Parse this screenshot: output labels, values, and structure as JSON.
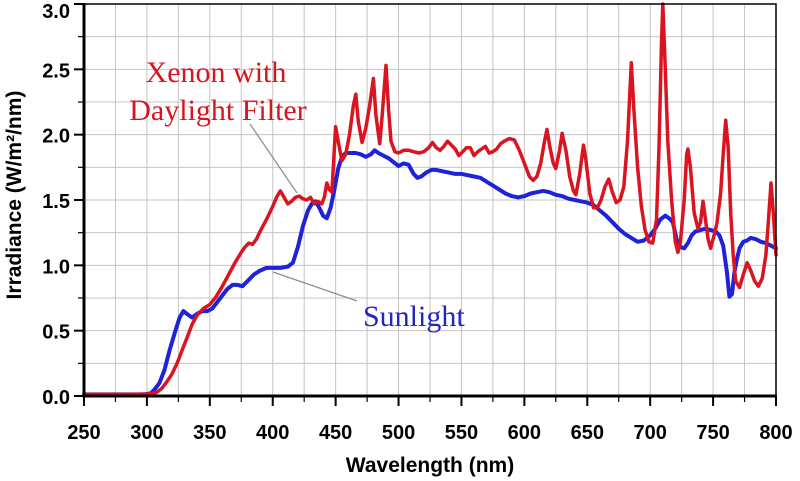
{
  "page": {
    "background": "#ffffff"
  },
  "chart_data": {
    "type": "line",
    "title": "",
    "xlabel": "Wavelength (nm)",
    "ylabel": "Irradiance (W/m²/nm)",
    "xlim": [
      250,
      800
    ],
    "ylim": [
      0,
      3.0
    ],
    "x_minor_step": 25,
    "y_minor_step": 0.25,
    "grid": "on",
    "grid_color": "#c4c4c4",
    "legend": "none",
    "x_ticks": [
      {
        "v": 250,
        "label": "250"
      },
      {
        "v": 300,
        "label": "300"
      },
      {
        "v": 350,
        "label": "350"
      },
      {
        "v": 400,
        "label": "400"
      },
      {
        "v": 450,
        "label": "450"
      },
      {
        "v": 500,
        "label": "500"
      },
      {
        "v": 550,
        "label": "550"
      },
      {
        "v": 600,
        "label": "600"
      },
      {
        "v": 650,
        "label": "650"
      },
      {
        "v": 700,
        "label": "700"
      },
      {
        "v": 750,
        "label": "750"
      },
      {
        "v": 800,
        "label": "800"
      }
    ],
    "y_ticks": [
      {
        "v": 0,
        "label": "0.0"
      },
      {
        "v": 0.5,
        "label": "0.5"
      },
      {
        "v": 1,
        "label": "1.0"
      },
      {
        "v": 1.5,
        "label": "1.5"
      },
      {
        "v": 2,
        "label": "2.0"
      },
      {
        "v": 2.5,
        "label": "2.5"
      },
      {
        "v": 3,
        "label": "3.0"
      }
    ],
    "series": [
      {
        "name": "Xenon with Daylight Filter",
        "id": "xenon-filter-curve",
        "color": "#da1420",
        "stroke_width": 3.5,
        "z": 2,
        "points": [
          [
            250,
            0.012
          ],
          [
            290,
            0.012
          ],
          [
            300,
            0.015
          ],
          [
            305,
            0.02
          ],
          [
            308,
            0.03
          ],
          [
            312,
            0.06
          ],
          [
            316,
            0.11
          ],
          [
            320,
            0.17
          ],
          [
            324,
            0.25
          ],
          [
            328,
            0.35
          ],
          [
            332,
            0.45
          ],
          [
            336,
            0.55
          ],
          [
            340,
            0.62
          ],
          [
            345,
            0.67
          ],
          [
            350,
            0.7
          ],
          [
            355,
            0.76
          ],
          [
            360,
            0.84
          ],
          [
            365,
            0.93
          ],
          [
            370,
            1.02
          ],
          [
            375,
            1.1
          ],
          [
            378,
            1.14
          ],
          [
            381,
            1.17
          ],
          [
            384,
            1.16
          ],
          [
            387,
            1.2
          ],
          [
            390,
            1.26
          ],
          [
            395,
            1.35
          ],
          [
            400,
            1.45
          ],
          [
            403,
            1.52
          ],
          [
            406,
            1.57
          ],
          [
            409,
            1.52
          ],
          [
            412,
            1.47
          ],
          [
            415,
            1.49
          ],
          [
            418,
            1.52
          ],
          [
            421,
            1.53
          ],
          [
            424,
            1.51
          ],
          [
            427,
            1.5
          ],
          [
            430,
            1.52
          ],
          [
            433,
            1.47
          ],
          [
            436,
            1.49
          ],
          [
            439,
            1.47
          ],
          [
            441,
            1.52
          ],
          [
            443,
            1.63
          ],
          [
            445,
            1.58
          ],
          [
            447,
            1.56
          ],
          [
            450,
            2.06
          ],
          [
            452,
            1.95
          ],
          [
            455,
            1.8
          ],
          [
            458,
            1.85
          ],
          [
            461,
            2.0
          ],
          [
            464,
            2.22
          ],
          [
            466,
            2.31
          ],
          [
            468,
            2.1
          ],
          [
            471,
            1.94
          ],
          [
            474,
            2.05
          ],
          [
            477,
            2.22
          ],
          [
            480,
            2.43
          ],
          [
            482,
            2.15
          ],
          [
            485,
            1.93
          ],
          [
            487,
            2.15
          ],
          [
            490,
            2.53
          ],
          [
            492,
            2.2
          ],
          [
            494,
            1.95
          ],
          [
            497,
            1.87
          ],
          [
            500,
            1.86
          ],
          [
            504,
            1.88
          ],
          [
            508,
            1.88
          ],
          [
            512,
            1.87
          ],
          [
            516,
            1.86
          ],
          [
            520,
            1.87
          ],
          [
            524,
            1.9
          ],
          [
            527,
            1.94
          ],
          [
            530,
            1.9
          ],
          [
            533,
            1.88
          ],
          [
            536,
            1.91
          ],
          [
            539,
            1.95
          ],
          [
            542,
            1.92
          ],
          [
            545,
            1.89
          ],
          [
            548,
            1.84
          ],
          [
            551,
            1.87
          ],
          [
            554,
            1.9
          ],
          [
            557,
            1.9
          ],
          [
            560,
            1.84
          ],
          [
            563,
            1.87
          ],
          [
            566,
            1.89
          ],
          [
            569,
            1.91
          ],
          [
            572,
            1.86
          ],
          [
            575,
            1.87
          ],
          [
            578,
            1.89
          ],
          [
            581,
            1.93
          ],
          [
            584,
            1.95
          ],
          [
            588,
            1.97
          ],
          [
            592,
            1.96
          ],
          [
            596,
            1.88
          ],
          [
            600,
            1.78
          ],
          [
            604,
            1.68
          ],
          [
            607,
            1.65
          ],
          [
            610,
            1.68
          ],
          [
            613,
            1.78
          ],
          [
            616,
            1.95
          ],
          [
            618,
            2.04
          ],
          [
            620,
            1.92
          ],
          [
            623,
            1.78
          ],
          [
            625,
            1.74
          ],
          [
            628,
            1.88
          ],
          [
            630,
            2.01
          ],
          [
            633,
            1.88
          ],
          [
            636,
            1.68
          ],
          [
            639,
            1.57
          ],
          [
            641,
            1.54
          ],
          [
            644,
            1.7
          ],
          [
            647,
            1.92
          ],
          [
            649,
            1.8
          ],
          [
            652,
            1.55
          ],
          [
            655,
            1.44
          ],
          [
            658,
            1.44
          ],
          [
            661,
            1.5
          ],
          [
            664,
            1.6
          ],
          [
            667,
            1.66
          ],
          [
            670,
            1.56
          ],
          [
            673,
            1.48
          ],
          [
            676,
            1.5
          ],
          [
            679,
            1.6
          ],
          [
            682,
            1.95
          ],
          [
            685,
            2.55
          ],
          [
            687,
            2.2
          ],
          [
            690,
            1.75
          ],
          [
            693,
            1.45
          ],
          [
            696,
            1.27
          ],
          [
            699,
            1.18
          ],
          [
            702,
            1.17
          ],
          [
            705,
            1.35
          ],
          [
            707,
            1.9
          ],
          [
            709,
            2.7
          ],
          [
            710,
            3.0
          ],
          [
            712,
            2.5
          ],
          [
            714,
            1.95
          ],
          [
            717,
            1.5
          ],
          [
            720,
            1.18
          ],
          [
            722,
            1.1
          ],
          [
            724,
            1.18
          ],
          [
            727,
            1.5
          ],
          [
            729,
            1.85
          ],
          [
            730,
            1.89
          ],
          [
            732,
            1.75
          ],
          [
            735,
            1.4
          ],
          [
            738,
            1.28
          ],
          [
            740,
            1.33
          ],
          [
            742,
            1.49
          ],
          [
            744,
            1.35
          ],
          [
            746,
            1.2
          ],
          [
            748,
            1.13
          ],
          [
            750,
            1.2
          ],
          [
            753,
            1.32
          ],
          [
            756,
            1.55
          ],
          [
            758,
            1.85
          ],
          [
            760,
            2.11
          ],
          [
            762,
            1.9
          ],
          [
            764,
            1.4
          ],
          [
            766,
            1.08
          ],
          [
            768,
            0.88
          ],
          [
            771,
            0.83
          ],
          [
            774,
            0.93
          ],
          [
            777,
            1.02
          ],
          [
            780,
            0.96
          ],
          [
            783,
            0.88
          ],
          [
            786,
            0.84
          ],
          [
            789,
            0.9
          ],
          [
            792,
            1.08
          ],
          [
            794,
            1.35
          ],
          [
            796,
            1.63
          ],
          [
            798,
            1.38
          ],
          [
            800,
            1.08
          ]
        ]
      },
      {
        "name": "Sunlight",
        "id": "sunlight-curve",
        "color": "#1e22d8",
        "stroke_width": 4,
        "z": 1,
        "points": [
          [
            250,
            0.012
          ],
          [
            298,
            0.012
          ],
          [
            303,
            0.02
          ],
          [
            306,
            0.05
          ],
          [
            310,
            0.1
          ],
          [
            314,
            0.2
          ],
          [
            318,
            0.35
          ],
          [
            322,
            0.48
          ],
          [
            326,
            0.6
          ],
          [
            329,
            0.65
          ],
          [
            333,
            0.62
          ],
          [
            336,
            0.6
          ],
          [
            340,
            0.63
          ],
          [
            344,
            0.65
          ],
          [
            348,
            0.65
          ],
          [
            352,
            0.67
          ],
          [
            356,
            0.72
          ],
          [
            360,
            0.77
          ],
          [
            364,
            0.82
          ],
          [
            368,
            0.85
          ],
          [
            372,
            0.85
          ],
          [
            376,
            0.84
          ],
          [
            380,
            0.88
          ],
          [
            385,
            0.93
          ],
          [
            390,
            0.96
          ],
          [
            395,
            0.98
          ],
          [
            400,
            0.98
          ],
          [
            406,
            0.98
          ],
          [
            412,
            0.99
          ],
          [
            416,
            1.02
          ],
          [
            420,
            1.14
          ],
          [
            424,
            1.3
          ],
          [
            428,
            1.42
          ],
          [
            431,
            1.47
          ],
          [
            434,
            1.49
          ],
          [
            437,
            1.44
          ],
          [
            440,
            1.38
          ],
          [
            443,
            1.36
          ],
          [
            446,
            1.44
          ],
          [
            449,
            1.58
          ],
          [
            452,
            1.74
          ],
          [
            455,
            1.83
          ],
          [
            458,
            1.86
          ],
          [
            462,
            1.86
          ],
          [
            466,
            1.86
          ],
          [
            470,
            1.85
          ],
          [
            474,
            1.83
          ],
          [
            478,
            1.85
          ],
          [
            481,
            1.88
          ],
          [
            484,
            1.86
          ],
          [
            488,
            1.84
          ],
          [
            492,
            1.82
          ],
          [
            496,
            1.79
          ],
          [
            500,
            1.76
          ],
          [
            504,
            1.78
          ],
          [
            508,
            1.77
          ],
          [
            512,
            1.7
          ],
          [
            515,
            1.67
          ],
          [
            518,
            1.68
          ],
          [
            522,
            1.71
          ],
          [
            526,
            1.73
          ],
          [
            530,
            1.73
          ],
          [
            535,
            1.72
          ],
          [
            540,
            1.71
          ],
          [
            545,
            1.7
          ],
          [
            550,
            1.7
          ],
          [
            555,
            1.69
          ],
          [
            560,
            1.68
          ],
          [
            565,
            1.67
          ],
          [
            570,
            1.64
          ],
          [
            575,
            1.61
          ],
          [
            580,
            1.58
          ],
          [
            585,
            1.55
          ],
          [
            590,
            1.53
          ],
          [
            595,
            1.52
          ],
          [
            600,
            1.53
          ],
          [
            605,
            1.55
          ],
          [
            610,
            1.56
          ],
          [
            615,
            1.57
          ],
          [
            620,
            1.56
          ],
          [
            625,
            1.54
          ],
          [
            630,
            1.53
          ],
          [
            635,
            1.51
          ],
          [
            640,
            1.5
          ],
          [
            645,
            1.49
          ],
          [
            650,
            1.48
          ],
          [
            655,
            1.46
          ],
          [
            660,
            1.42
          ],
          [
            665,
            1.38
          ],
          [
            670,
            1.33
          ],
          [
            675,
            1.28
          ],
          [
            680,
            1.24
          ],
          [
            685,
            1.21
          ],
          [
            690,
            1.18
          ],
          [
            695,
            1.19
          ],
          [
            700,
            1.23
          ],
          [
            704,
            1.28
          ],
          [
            708,
            1.35
          ],
          [
            712,
            1.38
          ],
          [
            715,
            1.36
          ],
          [
            718,
            1.33
          ],
          [
            721,
            1.2
          ],
          [
            724,
            1.14
          ],
          [
            727,
            1.13
          ],
          [
            730,
            1.17
          ],
          [
            733,
            1.23
          ],
          [
            736,
            1.26
          ],
          [
            740,
            1.27
          ],
          [
            744,
            1.28
          ],
          [
            748,
            1.27
          ],
          [
            752,
            1.26
          ],
          [
            755,
            1.23
          ],
          [
            758,
            1.15
          ],
          [
            761,
            0.95
          ],
          [
            763,
            0.76
          ],
          [
            765,
            0.78
          ],
          [
            767,
            0.95
          ],
          [
            769,
            1.05
          ],
          [
            771,
            1.13
          ],
          [
            774,
            1.18
          ],
          [
            777,
            1.19
          ],
          [
            780,
            1.21
          ],
          [
            784,
            1.2
          ],
          [
            788,
            1.18
          ],
          [
            792,
            1.17
          ],
          [
            796,
            1.15
          ],
          [
            800,
            1.13
          ]
        ]
      }
    ],
    "annotations": [
      {
        "id": "xenon-label",
        "lines": [
          "Xenon with",
          "Daylight Filter"
        ],
        "color": "#d8141f",
        "points_to": "Xenon with Daylight Filter curve"
      },
      {
        "id": "sunlight-label",
        "lines": [
          "Sunlight"
        ],
        "color": "#2626b8",
        "points_to": "Sunlight curve"
      }
    ]
  }
}
